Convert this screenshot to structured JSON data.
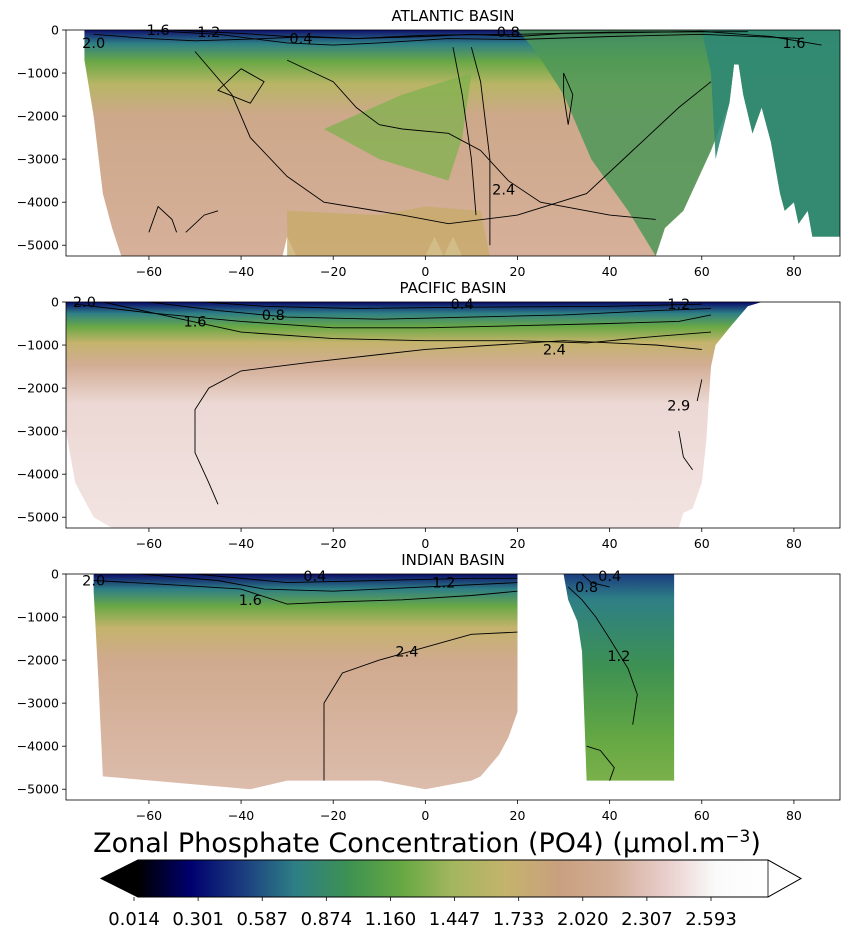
{
  "colors": {
    "colormap": [
      "#000000",
      "#00006e",
      "#1b3d7f",
      "#2e7f86",
      "#3d9152",
      "#65a843",
      "#a4b65e",
      "#c4b36c",
      "#c9a07e",
      "#d2ad95",
      "#e7ccc9",
      "#fafafa",
      "#ffffff"
    ],
    "contour_line": "#000000",
    "land": "#ffffff"
  },
  "chart_data": [
    {
      "type": "heatmap",
      "title": "ATLANTIC BASIN",
      "xlim": [
        -78,
        90
      ],
      "ylim": [
        -5250,
        0
      ],
      "xticks": [
        -60,
        -40,
        -20,
        0,
        20,
        40,
        60,
        80
      ],
      "yticks": [
        0,
        -1000,
        -2000,
        -3000,
        -4000,
        -5000
      ],
      "contour_labels": [
        "2.0",
        "1.6",
        "1.2",
        "0.4",
        "0.8",
        "1.6",
        "2.4"
      ],
      "water_extent": [
        [
          -74,
          -700
        ],
        [
          -72,
          -2000
        ],
        [
          -70,
          -3800
        ],
        [
          -68,
          -4600
        ],
        [
          -66,
          -5250
        ],
        [
          -31,
          -5250
        ],
        [
          -30,
          -4800
        ],
        [
          -28,
          -5250
        ],
        [
          0,
          -5250
        ],
        [
          2,
          -4800
        ],
        [
          4,
          -5250
        ],
        [
          6,
          -4800
        ],
        [
          8,
          -5250
        ],
        [
          50,
          -5250
        ],
        [
          52,
          -4600
        ],
        [
          56,
          -4200
        ],
        [
          62,
          -2800
        ],
        [
          66,
          -1700
        ],
        [
          67,
          -800
        ],
        [
          68,
          -800
        ],
        [
          69,
          -1500
        ],
        [
          71,
          -2400
        ],
        [
          73,
          -1800
        ],
        [
          75,
          -2600
        ],
        [
          77,
          -3800
        ],
        [
          78,
          -4200
        ],
        [
          80,
          -4000
        ],
        [
          81,
          -4500
        ],
        [
          83,
          -4200
        ],
        [
          84,
          -4800
        ],
        [
          90,
          -4800
        ],
        [
          90,
          0
        ],
        [
          -74,
          0
        ]
      ]
    },
    {
      "type": "heatmap",
      "title": "PACIFIC BASIN",
      "xlim": [
        -78,
        90
      ],
      "ylim": [
        -5250,
        0
      ],
      "xticks": [
        -60,
        -40,
        -20,
        0,
        20,
        40,
        60,
        80
      ],
      "yticks": [
        0,
        -1000,
        -2000,
        -3000,
        -4000,
        -5000
      ],
      "contour_labels": [
        "2.0",
        "1.6",
        "0.8",
        "0.4",
        "1.2",
        "2.4",
        "2.9"
      ],
      "water_extent": [
        [
          -78,
          -400
        ],
        [
          -78,
          -3000
        ],
        [
          -76,
          -4200
        ],
        [
          -74,
          -4600
        ],
        [
          -72,
          -5000
        ],
        [
          -68,
          -5250
        ],
        [
          55,
          -5250
        ],
        [
          56,
          -4900
        ],
        [
          58,
          -4800
        ],
        [
          60,
          -4200
        ],
        [
          61,
          -3200
        ],
        [
          62,
          -1500
        ],
        [
          63,
          -1000
        ],
        [
          66,
          -600
        ],
        [
          70,
          -100
        ],
        [
          73,
          0
        ],
        [
          -78,
          0
        ]
      ]
    },
    {
      "type": "heatmap",
      "title": "INDIAN BASIN",
      "xlim": [
        -78,
        90
      ],
      "ylim": [
        -5250,
        0
      ],
      "xticks": [
        -60,
        -40,
        -20,
        0,
        20,
        40,
        60,
        80
      ],
      "yticks": [
        0,
        -1000,
        -2000,
        -3000,
        -4000,
        -5000
      ],
      "contour_labels": [
        "2.0",
        "0.4",
        "1.6",
        "1.2",
        "2.4",
        "0.8",
        "0.4",
        "1.2"
      ],
      "water_extent": [
        [
          -72,
          -400
        ],
        [
          -71,
          -2400
        ],
        [
          -70,
          -4700
        ],
        [
          -38,
          -5000
        ],
        [
          -30,
          -4800
        ],
        [
          -10,
          -4800
        ],
        [
          0,
          -5000
        ],
        [
          10,
          -4800
        ],
        [
          12,
          -4700
        ],
        [
          16,
          -4200
        ],
        [
          18,
          -3800
        ],
        [
          20,
          -3200
        ],
        [
          20,
          0
        ],
        [
          -72,
          0
        ]
      ],
      "water_extent_2": [
        [
          30,
          0
        ],
        [
          31,
          -600
        ],
        [
          33,
          -1100
        ],
        [
          34,
          -1800
        ],
        [
          35,
          -4800
        ],
        [
          54,
          -4800
        ],
        [
          54,
          0
        ]
      ]
    }
  ],
  "colorbar": {
    "title_main": "Zonal Phosphate Concentration (PO4) (µmol.m",
    "title_exp": "−3",
    "title_close": ")",
    "ticks": [
      "0.014",
      "0.301",
      "0.587",
      "0.874",
      "1.160",
      "1.447",
      "1.733",
      "2.020",
      "2.307",
      "2.593"
    ]
  }
}
